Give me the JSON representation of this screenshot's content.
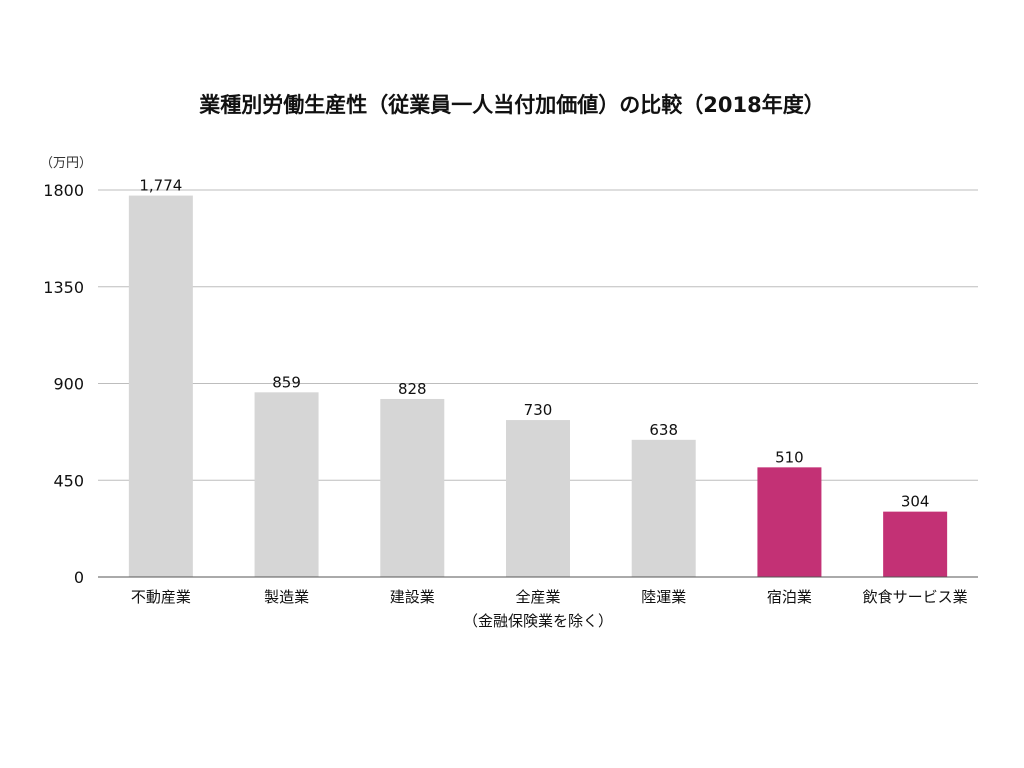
{
  "chart_data": {
    "type": "bar",
    "title": "業種別労働生産性（従業員一人当付加価値）の比較（2018年度）",
    "unit_label": "（万円）",
    "categories": [
      "不動産業",
      "製造業",
      "建設業",
      "全産業",
      "陸運業",
      "宿泊業",
      "飲食サービス業"
    ],
    "category_note": "（金融保険業を除く）",
    "category_note_index": 3,
    "values": [
      1774,
      859,
      828,
      730,
      638,
      510,
      304
    ],
    "value_labels": [
      "1,774",
      "859",
      "828",
      "730",
      "638",
      "510",
      "304"
    ],
    "ylim": [
      0,
      1800
    ],
    "yticks": [
      "0",
      "450",
      "900",
      "1350",
      "1800"
    ],
    "grid": true,
    "colors": {
      "default_bar": "#d6d6d6",
      "highlight_bar": "#c33175"
    },
    "highlighted_categories": [
      "宿泊業",
      "飲食サービス業"
    ]
  }
}
